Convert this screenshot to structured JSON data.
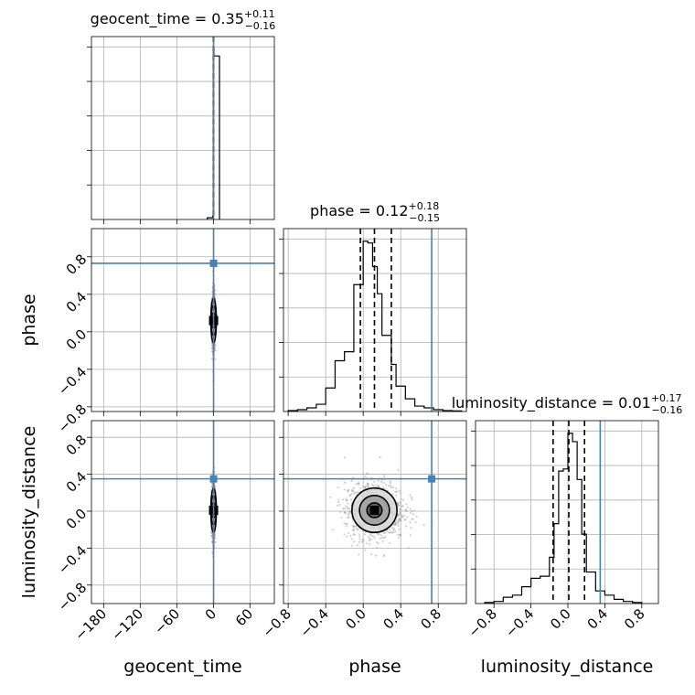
{
  "chart_data": {
    "type": "corner",
    "parameters": [
      {
        "name": "geocent_time",
        "label": "geocent_time",
        "title_prefix": "geocent_time = ",
        "median": "0.35",
        "plus": "+0.11",
        "minus": "−0.16",
        "range": [
          -200,
          100
        ],
        "ticks": [
          -180,
          -120,
          -60,
          0,
          60
        ],
        "tick_labels": [
          "−180",
          "−120",
          "−60",
          "0",
          "60"
        ],
        "truth": 0.35,
        "quantiles": [
          0.19,
          0.35,
          0.46
        ],
        "hist_bins": [
          -10,
          -1,
          0,
          1,
          10
        ],
        "hist_counts": [
          1,
          2,
          100,
          96
        ]
      },
      {
        "name": "phase",
        "label": "phase",
        "title_prefix": "phase = ",
        "median": "0.12",
        "plus": "+0.18",
        "minus": "−0.15",
        "range": [
          -0.85,
          1.1
        ],
        "ticks": [
          -0.8,
          -0.4,
          0.0,
          0.4,
          0.8
        ],
        "tick_labels": [
          "−0.8",
          "−0.4",
          "0.0",
          "0.4",
          "0.8"
        ],
        "truth": 0.73,
        "quantiles": [
          -0.03,
          0.12,
          0.3
        ],
        "hist_bins": [
          -0.8,
          -0.7,
          -0.6,
          -0.5,
          -0.4,
          -0.3,
          -0.2,
          -0.1,
          0.0,
          0.05,
          0.1,
          0.15,
          0.2,
          0.3,
          0.35,
          0.45,
          0.55,
          0.65,
          0.75,
          0.85,
          0.95,
          1.05
        ],
        "hist_counts": [
          0.5,
          1,
          2,
          4,
          13,
          28,
          33,
          70,
          94,
          93,
          80,
          65,
          42,
          26,
          14,
          7,
          3,
          2,
          1,
          0.5,
          0.3
        ]
      },
      {
        "name": "luminosity_distance",
        "label": "luminosity_distance",
        "title_prefix": "luminosity_distance = ",
        "median": "0.01",
        "plus": "+0.17",
        "minus": "−0.16",
        "range": [
          -1.0,
          0.98
        ],
        "ticks": [
          -0.8,
          -0.4,
          0.0,
          0.4,
          0.8
        ],
        "tick_labels": [
          "−0.8",
          "−0.4",
          "0.0",
          "0.4",
          "0.8"
        ],
        "truth": 0.35,
        "quantiles": [
          -0.16,
          0.01,
          0.18
        ],
        "hist_bins": [
          -0.9,
          -0.8,
          -0.7,
          -0.6,
          -0.5,
          -0.4,
          -0.3,
          -0.2,
          -0.15,
          -0.1,
          -0.05,
          0.0,
          0.05,
          0.1,
          0.15,
          0.2,
          0.3,
          0.4,
          0.5,
          0.6,
          0.7,
          0.8
        ],
        "hist_counts": [
          0.5,
          1,
          3,
          4,
          8,
          12,
          13,
          22,
          38,
          63,
          64,
          81,
          77,
          59,
          33,
          15,
          6,
          4,
          2,
          1,
          0.5
        ]
      }
    ],
    "truth_color": "#4682b4",
    "grid": true,
    "contour_levels_sigma": [
      0.5,
      1.0,
      1.5
    ]
  }
}
